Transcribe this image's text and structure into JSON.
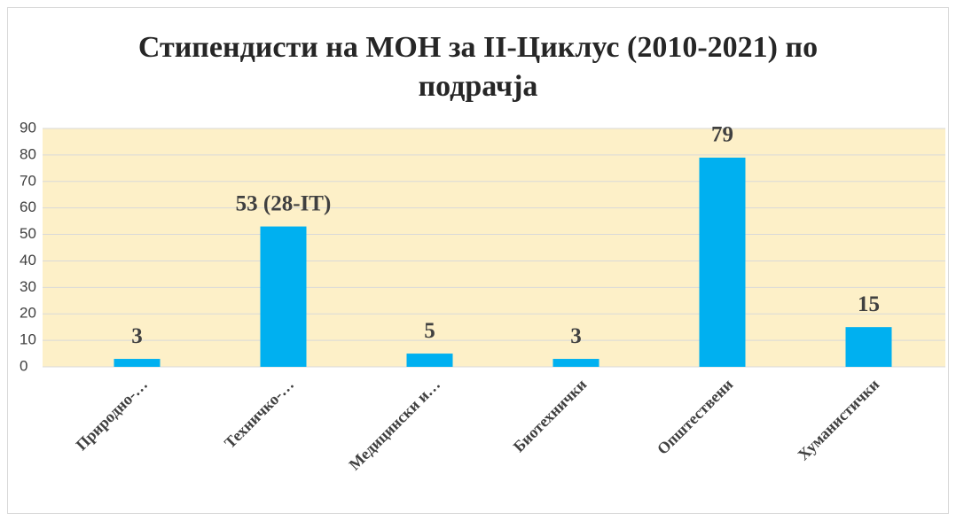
{
  "chart_data": {
    "type": "bar",
    "title": "Стипендисти на МОН за II-Циклус (2010-2021) по подрачја",
    "categories": [
      "Природно-…",
      "Техничко-…",
      "Медицински и…",
      "Биотехнички",
      "Општествени",
      "Хуманистички"
    ],
    "values": [
      3,
      53,
      5,
      3,
      79,
      15
    ],
    "value_labels": [
      "3",
      "53 (28-IT)",
      "5",
      "3",
      "79",
      "15"
    ],
    "color": "#00b0f0",
    "ylim": [
      0,
      90
    ],
    "yticks": [
      0,
      10,
      20,
      30,
      40,
      50,
      60,
      70,
      80,
      90
    ],
    "grid": true
  }
}
